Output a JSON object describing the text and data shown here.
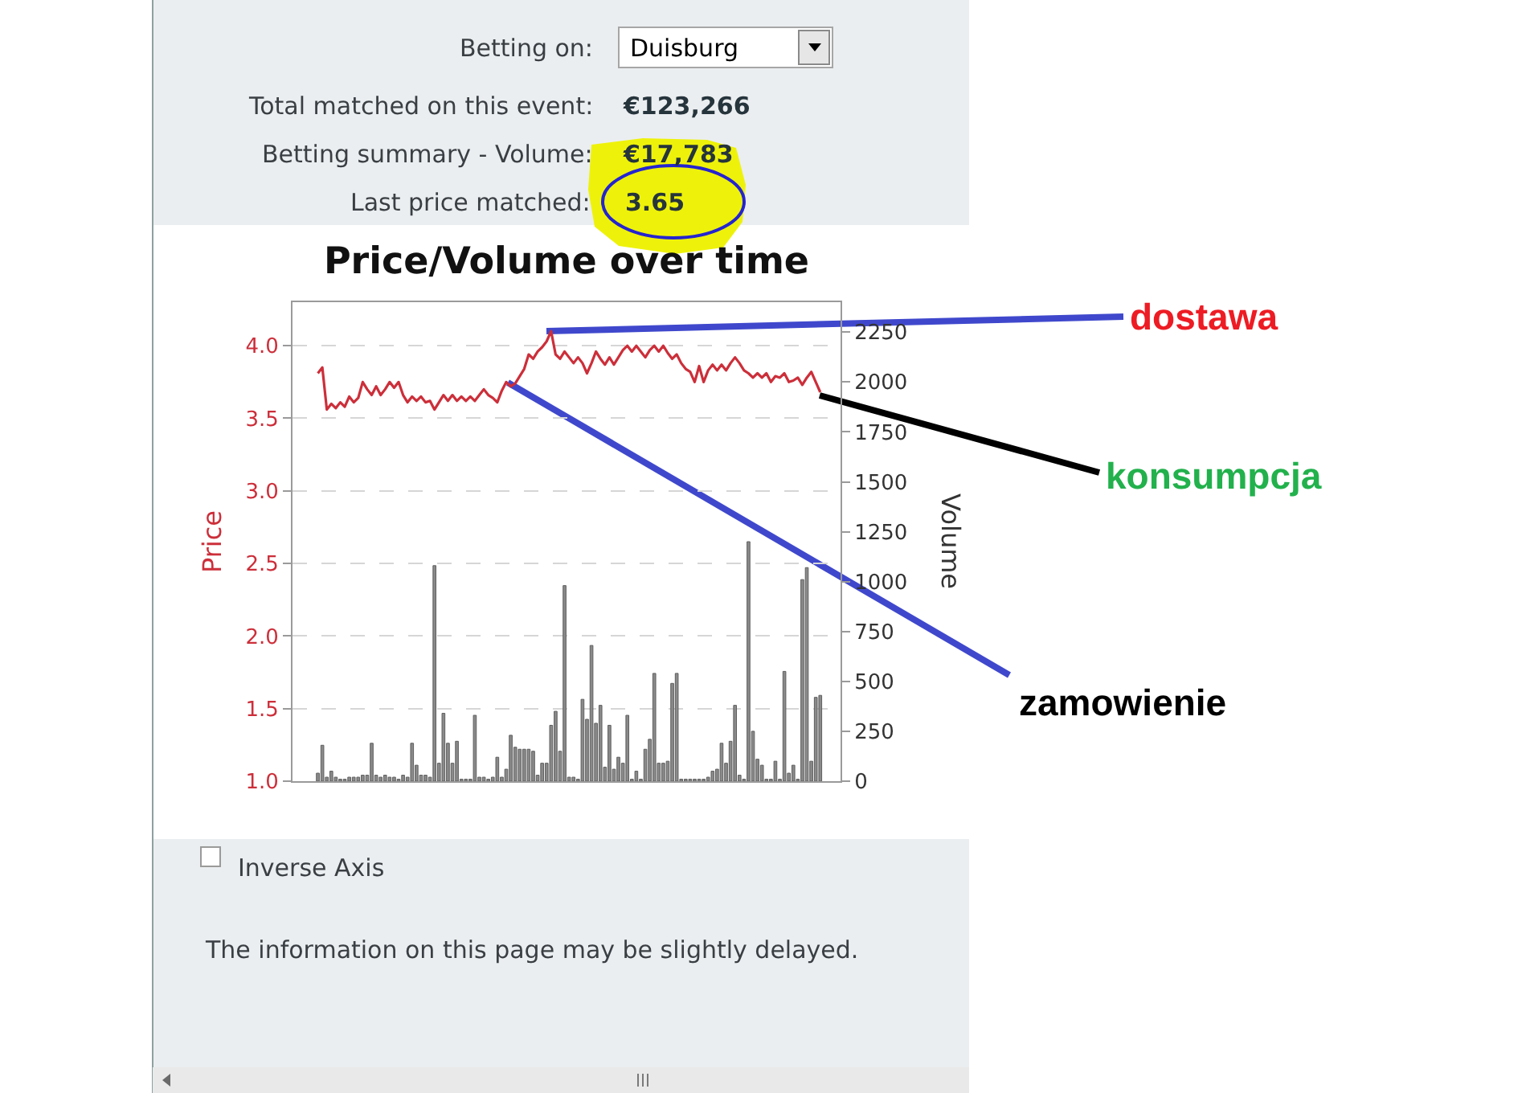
{
  "chart_data": {
    "type": "line",
    "title": "Price/Volume over time",
    "ylabel": "Price",
    "y2label": "Volume",
    "annotations": [
      "Betting on:",
      "Duisburg",
      "Total matched on this event:",
      "€123,266",
      "Betting summary - Volume:",
      "€17,783",
      "Last price matched:",
      "3.65",
      "Inverse Axis",
      "The information on this page may be slightly delayed.",
      "dostawa",
      "konsumpcja",
      "zamowienie"
    ],
    "categories": [
      null,
      null,
      null,
      null,
      null,
      null,
      null,
      null,
      null,
      null,
      null,
      null,
      null,
      null,
      null,
      null,
      null,
      null,
      null,
      null,
      null,
      null,
      null,
      null,
      null,
      null,
      null,
      null,
      null,
      null,
      null,
      null,
      null,
      null,
      null,
      null,
      null,
      null,
      null,
      null,
      null,
      null,
      null,
      null,
      null,
      null,
      null,
      null,
      null,
      null,
      null,
      null,
      null,
      null,
      null,
      null,
      null,
      null,
      null,
      null,
      null,
      null,
      null,
      null,
      null,
      null,
      null,
      null,
      null,
      null,
      null,
      null,
      null,
      null,
      null,
      null,
      null,
      null,
      null,
      null,
      null,
      null,
      null,
      null,
      null,
      null,
      null,
      null,
      null,
      null,
      null,
      null,
      null,
      null,
      null,
      null,
      null,
      null,
      null,
      null,
      null,
      null,
      null,
      null,
      null,
      null,
      null,
      null,
      null,
      null,
      null,
      null,
      null
    ],
    "series": [
      {
        "type": "bar",
        "axis": "y2",
        "color": "#8a8a8a",
        "values": [
          40,
          180,
          20,
          50,
          20,
          10,
          10,
          20,
          20,
          20,
          30,
          30,
          190,
          30,
          20,
          30,
          20,
          20,
          10,
          30,
          20,
          190,
          80,
          30,
          30,
          20,
          1080,
          90,
          340,
          190,
          90,
          200,
          10,
          10,
          10,
          330,
          20,
          20,
          10,
          20,
          120,
          20,
          60,
          230,
          170,
          160,
          160,
          160,
          150,
          30,
          90,
          90,
          280,
          350,
          150,
          980,
          20,
          20,
          10,
          410,
          310,
          680,
          290,
          380,
          70,
          280,
          60,
          120,
          90,
          330,
          10,
          50,
          10,
          160,
          210,
          540,
          90,
          90,
          100,
          490,
          540,
          10,
          10,
          10,
          10,
          10,
          10,
          20,
          50,
          60,
          190,
          90,
          200,
          380,
          30,
          10,
          1200,
          250,
          110,
          80,
          10,
          10,
          100,
          10,
          550,
          40,
          80,
          10,
          1010,
          1070,
          100,
          420,
          430
        ]
      },
      {
        "color": "#cc2f3a",
        "values": [
          3.81,
          3.85,
          3.56,
          3.6,
          3.57,
          3.61,
          3.58,
          3.65,
          3.61,
          3.64,
          3.75,
          3.7,
          3.66,
          3.72,
          3.66,
          3.7,
          3.75,
          3.71,
          3.75,
          3.66,
          3.61,
          3.65,
          3.62,
          3.65,
          3.61,
          3.62,
          3.56,
          3.61,
          3.66,
          3.62,
          3.66,
          3.62,
          3.65,
          3.62,
          3.65,
          3.62,
          3.66,
          3.7,
          3.66,
          3.64,
          3.61,
          3.69,
          3.75,
          3.72,
          3.74,
          3.79,
          3.84,
          3.94,
          3.91,
          3.96,
          3.99,
          4.03,
          4.1,
          3.94,
          3.91,
          3.96,
          3.92,
          3.88,
          3.92,
          3.88,
          3.81,
          3.88,
          3.96,
          3.91,
          3.87,
          3.92,
          3.87,
          3.92,
          3.97,
          4.0,
          3.96,
          4.0,
          3.96,
          3.92,
          3.97,
          4.0,
          3.96,
          4.0,
          3.95,
          3.91,
          3.94,
          3.88,
          3.84,
          3.82,
          3.75,
          3.86,
          3.75,
          3.83,
          3.87,
          3.83,
          3.87,
          3.83,
          3.88,
          3.92,
          3.88,
          3.83,
          3.81,
          3.78,
          3.81,
          3.78,
          3.81,
          3.75,
          3.79,
          3.78,
          3.81,
          3.75,
          3.76,
          3.78,
          3.73,
          3.78,
          3.82,
          3.75,
          3.68
        ]
      }
    ],
    "ylim": [
      1.0,
      4.3
    ],
    "yticks": [
      {
        "value": 1.0,
        "label": "1.0"
      },
      {
        "value": 1.5,
        "label": "1.5"
      },
      {
        "value": 2.0,
        "label": "2.0"
      },
      {
        "value": 2.5,
        "label": "2.5"
      },
      {
        "value": 3.0,
        "label": "3.0"
      },
      {
        "value": 3.5,
        "label": "3.5"
      },
      {
        "value": 4.0,
        "label": "4.0"
      }
    ],
    "y2lim": [
      0,
      2400
    ],
    "y2ticks": [
      0,
      250,
      500,
      750,
      1000,
      1250,
      1500,
      1750,
      2000,
      2250
    ],
    "grid": "y"
  }
}
